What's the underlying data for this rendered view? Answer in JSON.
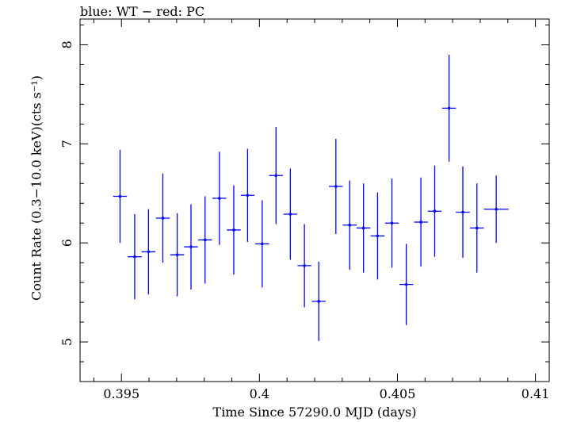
{
  "chart_data": {
    "type": "scatter",
    "title": "blue: WT − red: PC",
    "xlabel": "Time Since 57290.0 MJD (days)",
    "ylabel": "Count Rate (0.3−10.0 keV)(cts s⁻¹)",
    "xlim": [
      0.3935,
      0.4105
    ],
    "ylim": [
      4.6,
      8.26
    ],
    "xticks": [
      0.395,
      0.4,
      0.405,
      0.41
    ],
    "xtick_labels": [
      "0.395",
      "0.4",
      "0.405",
      "0.41"
    ],
    "yticks": [
      5,
      6,
      7,
      8
    ],
    "ytick_labels": [
      "5",
      "6",
      "7",
      "8"
    ],
    "grid": false,
    "series": [
      {
        "name": "WT",
        "color": "#0000ff",
        "points": [
          {
            "x": 0.39495,
            "xerr": 0.00025,
            "y": 6.47,
            "yerr": 0.47
          },
          {
            "x": 0.39548,
            "xerr": 0.00025,
            "y": 5.86,
            "yerr": 0.43
          },
          {
            "x": 0.39598,
            "xerr": 0.00025,
            "y": 5.91,
            "yerr": 0.43
          },
          {
            "x": 0.3965,
            "xerr": 0.00025,
            "y": 6.25,
            "yerr": 0.45
          },
          {
            "x": 0.39702,
            "xerr": 0.00025,
            "y": 5.88,
            "yerr": 0.42
          },
          {
            "x": 0.39752,
            "xerr": 0.00025,
            "y": 5.96,
            "yerr": 0.43
          },
          {
            "x": 0.39803,
            "xerr": 0.00025,
            "y": 6.03,
            "yerr": 0.44
          },
          {
            "x": 0.39855,
            "xerr": 0.00025,
            "y": 6.45,
            "yerr": 0.47
          },
          {
            "x": 0.39907,
            "xerr": 0.00025,
            "y": 6.13,
            "yerr": 0.45
          },
          {
            "x": 0.39957,
            "xerr": 0.00025,
            "y": 6.48,
            "yerr": 0.47
          },
          {
            "x": 0.4001,
            "xerr": 0.00025,
            "y": 5.99,
            "yerr": 0.44
          },
          {
            "x": 0.4006,
            "xerr": 0.00025,
            "y": 6.68,
            "yerr": 0.49
          },
          {
            "x": 0.40112,
            "xerr": 0.00025,
            "y": 6.29,
            "yerr": 0.46
          },
          {
            "x": 0.40163,
            "xerr": 0.00025,
            "y": 5.77,
            "yerr": 0.42
          },
          {
            "x": 0.40215,
            "xerr": 0.00025,
            "y": 5.41,
            "yerr": 0.4
          },
          {
            "x": 0.40277,
            "xerr": 0.00025,
            "y": 6.57,
            "yerr": 0.48
          },
          {
            "x": 0.40327,
            "xerr": 0.00025,
            "y": 6.18,
            "yerr": 0.45
          },
          {
            "x": 0.40377,
            "xerr": 0.00025,
            "y": 6.15,
            "yerr": 0.45
          },
          {
            "x": 0.40428,
            "xerr": 0.00025,
            "y": 6.07,
            "yerr": 0.44
          },
          {
            "x": 0.4048,
            "xerr": 0.00025,
            "y": 6.2,
            "yerr": 0.45
          },
          {
            "x": 0.40532,
            "xerr": 0.00025,
            "y": 5.58,
            "yerr": 0.41
          },
          {
            "x": 0.40585,
            "xerr": 0.00025,
            "y": 6.21,
            "yerr": 0.45
          },
          {
            "x": 0.40635,
            "xerr": 0.00025,
            "y": 6.32,
            "yerr": 0.46
          },
          {
            "x": 0.40687,
            "xerr": 0.00025,
            "y": 7.36,
            "yerr": 0.54
          },
          {
            "x": 0.40737,
            "xerr": 0.00025,
            "y": 6.31,
            "yerr": 0.46
          },
          {
            "x": 0.40788,
            "xerr": 0.00025,
            "y": 6.15,
            "yerr": 0.45
          },
          {
            "x": 0.40858,
            "xerr": 0.00045,
            "y": 6.34,
            "yerr": 0.34
          }
        ]
      }
    ]
  }
}
